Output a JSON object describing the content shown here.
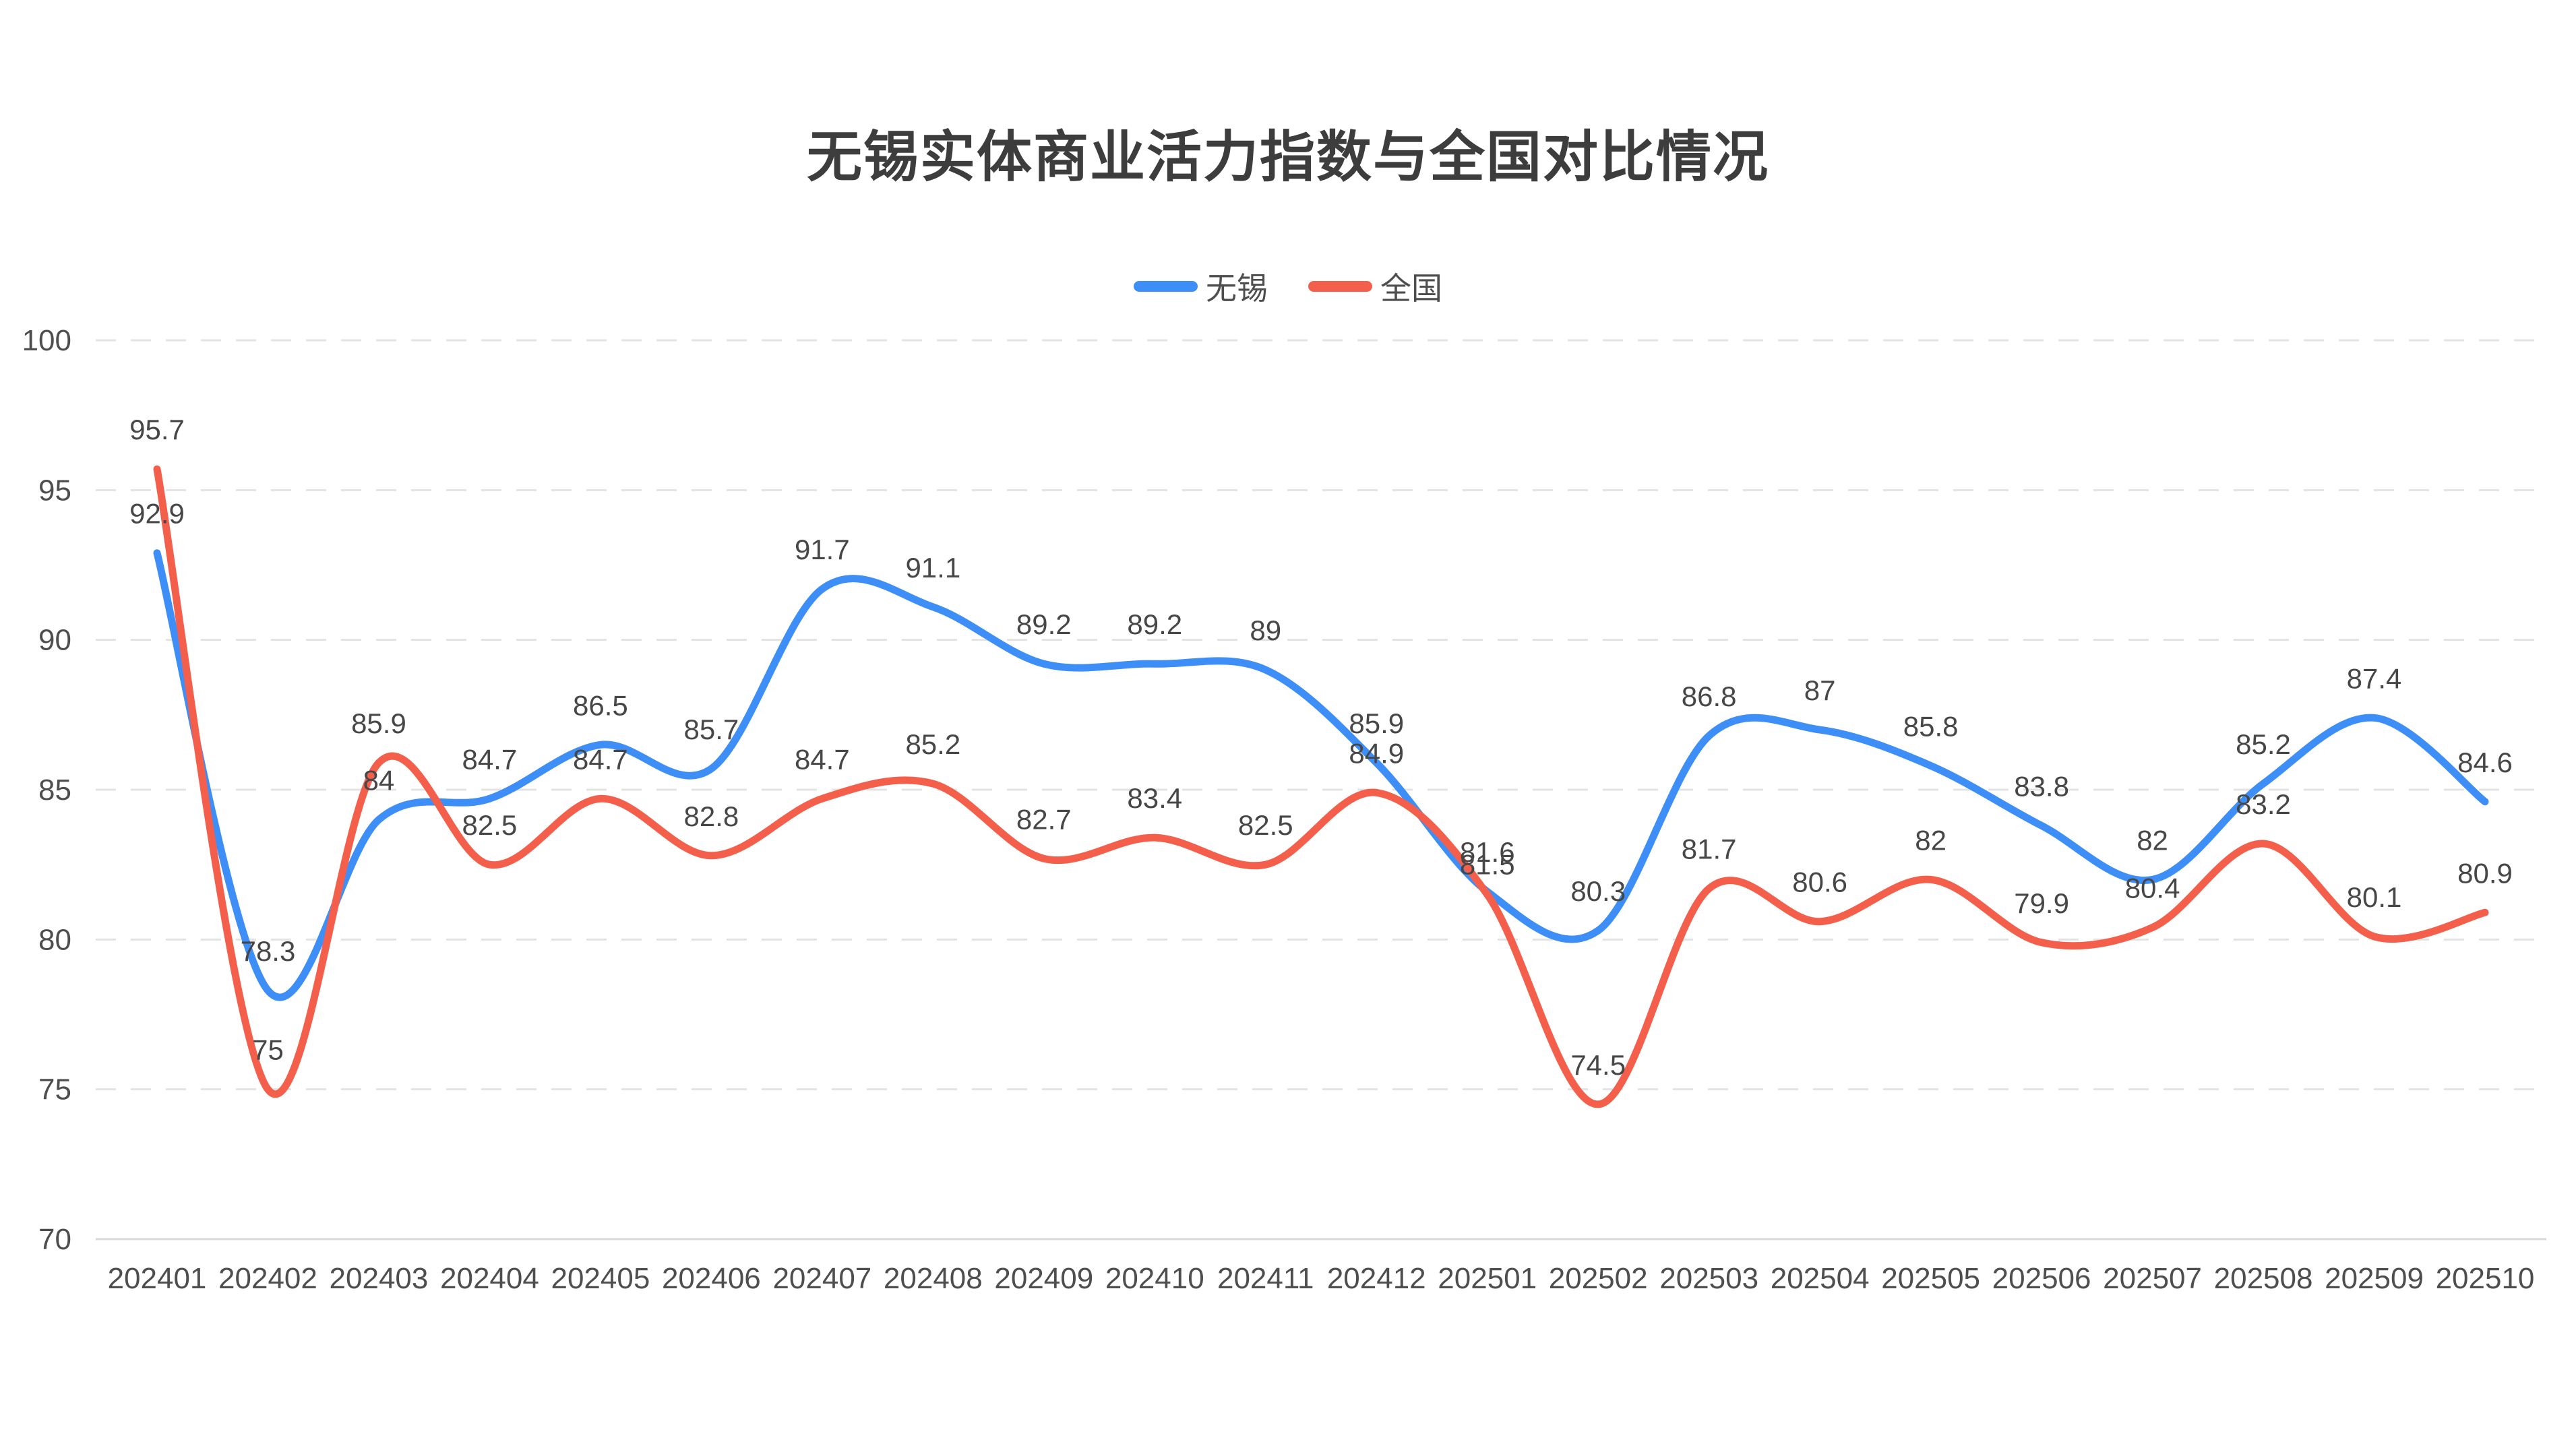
{
  "title": {
    "text": "无锡实体商业活力指数与全国对比情况"
  },
  "legend": {
    "items": [
      {
        "label": "无锡",
        "color": "#3e8ef7"
      },
      {
        "label": "全国",
        "color": "#f45f4c"
      }
    ]
  },
  "chart_data": {
    "type": "line",
    "smooth": true,
    "title": "无锡实体商业活力指数与全国对比情况",
    "categories": [
      "202401",
      "202402",
      "202403",
      "202404",
      "202405",
      "202406",
      "202407",
      "202408",
      "202409",
      "202410",
      "202411",
      "202412",
      "202501",
      "202502",
      "202503",
      "202504",
      "202505",
      "202506",
      "202507",
      "202508",
      "202509",
      "202510"
    ],
    "series": [
      {
        "name": "无锡",
        "color": "#3e8ef7",
        "values": [
          92.9,
          78.3,
          84,
          84.7,
          86.5,
          85.7,
          91.7,
          91.1,
          89.2,
          89.2,
          89,
          85.9,
          81.6,
          80.3,
          86.8,
          87,
          85.8,
          83.8,
          82,
          85.2,
          87.4,
          84.6
        ]
      },
      {
        "name": "全国",
        "color": "#f45f4c",
        "values": [
          95.7,
          75,
          85.9,
          82.5,
          84.7,
          82.8,
          84.7,
          85.2,
          82.7,
          83.4,
          82.5,
          84.9,
          81.5,
          74.5,
          81.7,
          80.6,
          82,
          79.9,
          80.4,
          83.2,
          80.1,
          80.9
        ]
      }
    ],
    "xlabel": "",
    "ylabel": "",
    "ylim": [
      70,
      100
    ],
    "yticks": [
      70,
      75,
      80,
      85,
      90,
      95,
      100
    ],
    "grid": "dashed horizontal",
    "legend_position": "top",
    "label_color": "#474747",
    "axis_label_color": "#4e4e4e",
    "grid_color": "#e3e3e3",
    "axis_line_color": "#d8d8d8"
  }
}
